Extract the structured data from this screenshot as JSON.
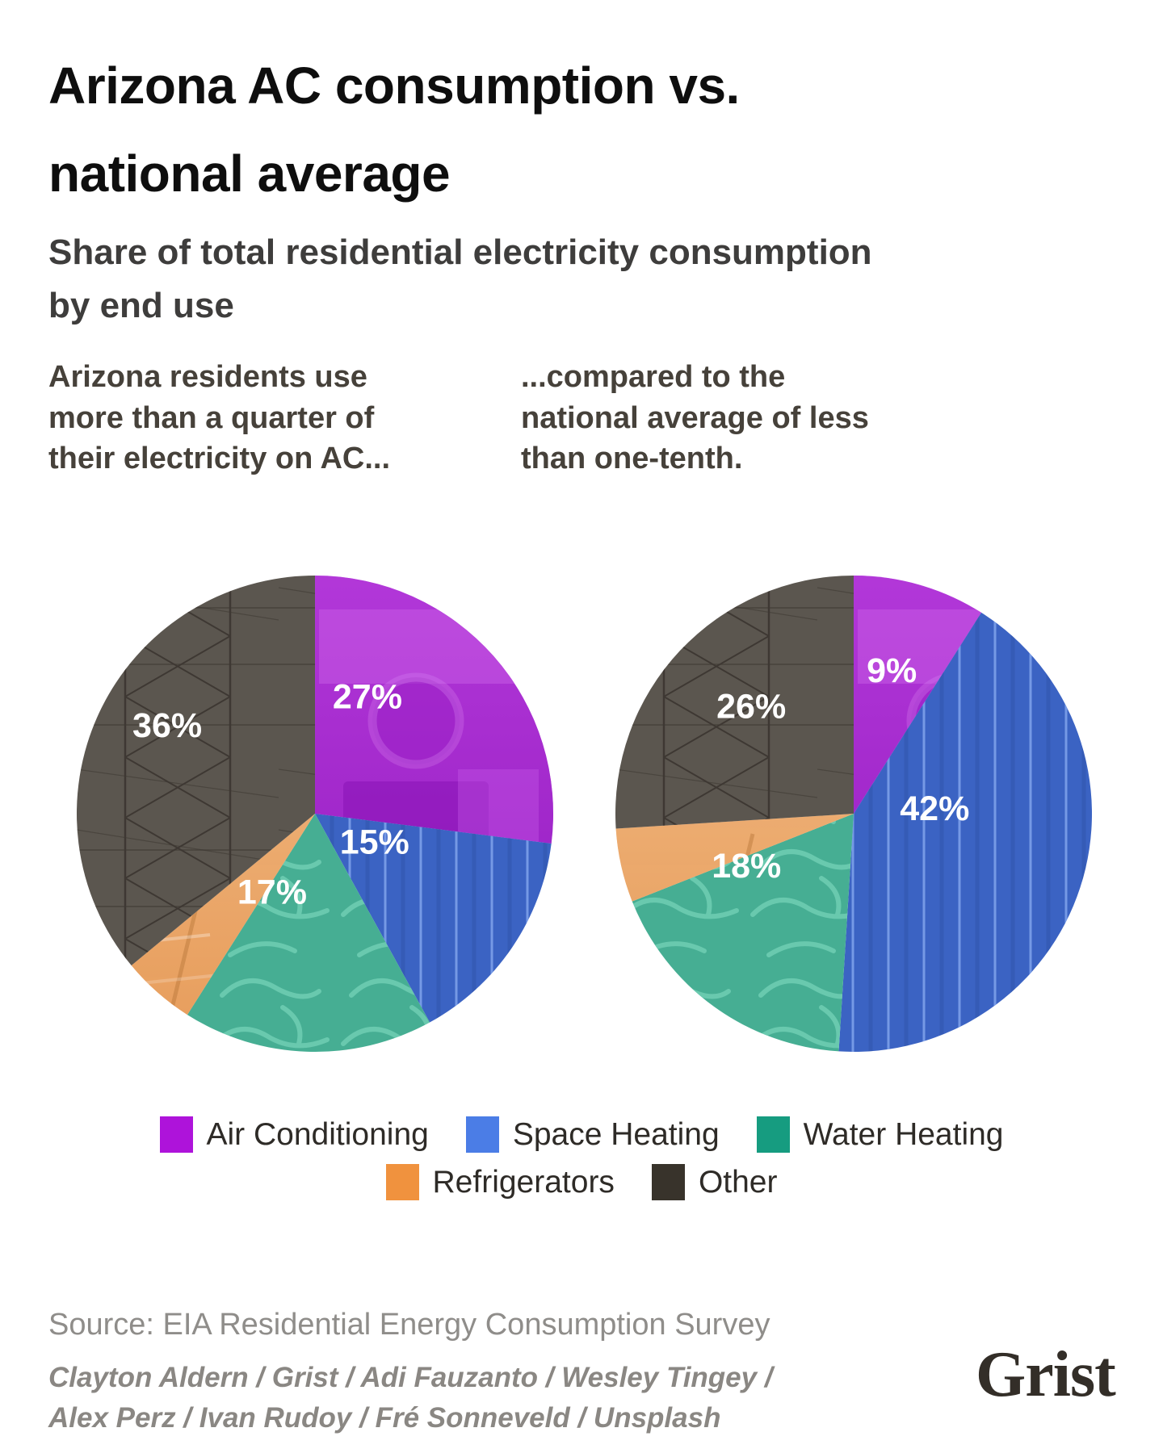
{
  "header": {
    "title": "Arizona AC consumption vs.\nnational average",
    "subtitle": "Share of total residential electricity consumption\nby end use"
  },
  "chart_data": {
    "type": "pie",
    "unit": "%",
    "legend_position": "bottom",
    "start_angle_deg": 0,
    "direction": "clockwise",
    "categories": [
      {
        "key": "ac",
        "label": "Air Conditioning",
        "legend_color": "#ae13da",
        "pie_color": "#a424d2"
      },
      {
        "key": "space_heating",
        "label": "Space Heating",
        "legend_color": "#4b7de6",
        "pie_color": "#3b63c3"
      },
      {
        "key": "water_heating",
        "label": "Water Heating",
        "legend_color": "#169c80",
        "pie_color": "#46ae93"
      },
      {
        "key": "refrigerators",
        "label": "Refrigerators",
        "legend_color": "#f0923e",
        "pie_color": "#eca76b"
      },
      {
        "key": "other",
        "label": "Other",
        "legend_color": "#38332b",
        "pie_color": "#5b564f"
      }
    ],
    "pies": [
      {
        "id": "arizona",
        "annotation": "Arizona residents use\nmore than a quarter of\ntheir electricity on AC...",
        "slices": [
          {
            "category": "ac",
            "value": 27,
            "label": "27%",
            "label_at": [
              0.22,
              -0.49
            ]
          },
          {
            "category": "space_heating",
            "value": 15,
            "label": "15%",
            "label_at": [
              0.25,
              0.12
            ]
          },
          {
            "category": "water_heating",
            "value": 17,
            "label": "17%",
            "label_at": [
              -0.18,
              0.33
            ]
          },
          {
            "category": "refrigerators",
            "value": 5,
            "label": "",
            "label_at": [
              0,
              0
            ]
          },
          {
            "category": "other",
            "value": 36,
            "label": "36%",
            "label_at": [
              -0.62,
              -0.37
            ]
          }
        ]
      },
      {
        "id": "national",
        "annotation": "...compared to the\nnational average of less\nthan one-tenth.",
        "slices": [
          {
            "category": "ac",
            "value": 9,
            "label": "9%",
            "label_at": [
              0.16,
              -0.6
            ]
          },
          {
            "category": "space_heating",
            "value": 42,
            "label": "42%",
            "label_at": [
              0.34,
              -0.02
            ]
          },
          {
            "category": "water_heating",
            "value": 18,
            "label": "18%",
            "label_at": [
              -0.45,
              0.22
            ]
          },
          {
            "category": "refrigerators",
            "value": 5,
            "label": "",
            "label_at": [
              0,
              0
            ]
          },
          {
            "category": "other",
            "value": 26,
            "label": "26%",
            "label_at": [
              -0.43,
              -0.45
            ]
          }
        ]
      }
    ]
  },
  "footer": {
    "source": "Source: EIA Residential Energy Consumption Survey",
    "credits": "Clayton Aldern / Grist / Adi Fauzanto / Wesley Tingey /\nAlex Perz / Ivan Rudoy / Fré Sonneveld / Unsplash",
    "logo_text": "Grist"
  }
}
